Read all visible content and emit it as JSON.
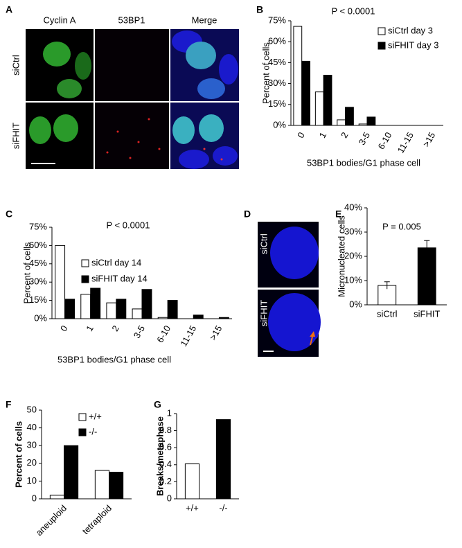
{
  "panel_labels": [
    "A",
    "B",
    "C",
    "D",
    "E",
    "F",
    "G"
  ],
  "panel_a": {
    "columns": [
      "Cyclin A",
      "53BP1",
      "Merge"
    ],
    "rows": [
      "siCtrl",
      "siFHIT"
    ]
  },
  "panel_d": {
    "rows": [
      "siCtrl",
      "siFHIT"
    ]
  },
  "chart_data": [
    {
      "type": "bar",
      "annotation": "P < 0.0001",
      "xlabel": "53BP1 bodies/G1 phase cell",
      "ylabel": "Percent of cells",
      "categories": [
        "0",
        "1",
        "2",
        "3-5",
        "6-10",
        "11-15",
        ">15"
      ],
      "series": [
        {
          "name": "siCtrl day 3",
          "color": "#ffffff",
          "values": [
            71,
            24,
            4,
            1,
            0,
            0,
            0
          ]
        },
        {
          "name": "siFHIT day 3",
          "color": "#000000",
          "values": [
            46,
            36,
            13,
            6,
            0,
            0,
            0
          ]
        }
      ],
      "ylim": [
        0,
        75
      ],
      "yticks": [
        {
          "value": 0,
          "label": "0%"
        },
        {
          "value": 15,
          "label": "15%"
        },
        {
          "value": 30,
          "label": "30%"
        },
        {
          "value": 45,
          "label": "45%"
        },
        {
          "value": 60,
          "label": "60%"
        },
        {
          "value": 75,
          "label": "75%"
        }
      ]
    },
    {
      "type": "bar",
      "annotation": "P < 0.0001",
      "xlabel": "53BP1 bodies/G1 phase cell",
      "ylabel": "Percent of cells",
      "categories": [
        "0",
        "1",
        "2",
        "3-5",
        "6-10",
        "11-15",
        ">15"
      ],
      "series": [
        {
          "name": "siCtrl day 14",
          "color": "#ffffff",
          "values": [
            60,
            20,
            13,
            8,
            1,
            0,
            0
          ]
        },
        {
          "name": "siFHIT day 14",
          "color": "#000000",
          "values": [
            16,
            25,
            16,
            24,
            15,
            3,
            1
          ]
        }
      ],
      "ylim": [
        0,
        75
      ],
      "yticks": [
        {
          "value": 0,
          "label": "0%"
        },
        {
          "value": 15,
          "label": "15%"
        },
        {
          "value": 30,
          "label": "30%"
        },
        {
          "value": 45,
          "label": "45%"
        },
        {
          "value": 60,
          "label": "60%"
        },
        {
          "value": 75,
          "label": "75%"
        }
      ]
    },
    {
      "type": "bar",
      "annotation": "P = 0.005",
      "ylabel": "Micronucleated cells",
      "categories": [
        "siCtrl",
        "siFHIT"
      ],
      "values": [
        8,
        23.5
      ],
      "errors": [
        1.5,
        3
      ],
      "colors": [
        "#ffffff",
        "#000000"
      ],
      "ylim": [
        0,
        40
      ],
      "yticks": [
        {
          "value": 0,
          "label": "0%"
        },
        {
          "value": 10,
          "label": "10%"
        },
        {
          "value": 20,
          "label": "20%"
        },
        {
          "value": 30,
          "label": "30%"
        },
        {
          "value": 40,
          "label": "40%"
        }
      ]
    },
    {
      "type": "bar",
      "ylabel": "Percent of cells",
      "categories": [
        "aneuploid",
        "tetraploid"
      ],
      "series": [
        {
          "name": "+/+",
          "color": "#ffffff",
          "values": [
            2,
            16
          ]
        },
        {
          "name": "-/-",
          "color": "#000000",
          "values": [
            30,
            15
          ]
        }
      ],
      "ylim": [
        0,
        50
      ],
      "yticks": [
        0,
        10,
        20,
        30,
        40,
        50
      ]
    },
    {
      "type": "bar",
      "ylabel": "Breaks/metaphase",
      "categories": [
        "+/+",
        "-/-"
      ],
      "values": [
        0.41,
        0.93
      ],
      "colors": [
        "#ffffff",
        "#000000"
      ],
      "ylim": [
        0,
        1
      ],
      "yticks": [
        0,
        0.2,
        0.4,
        0.6,
        0.8,
        1
      ]
    }
  ]
}
